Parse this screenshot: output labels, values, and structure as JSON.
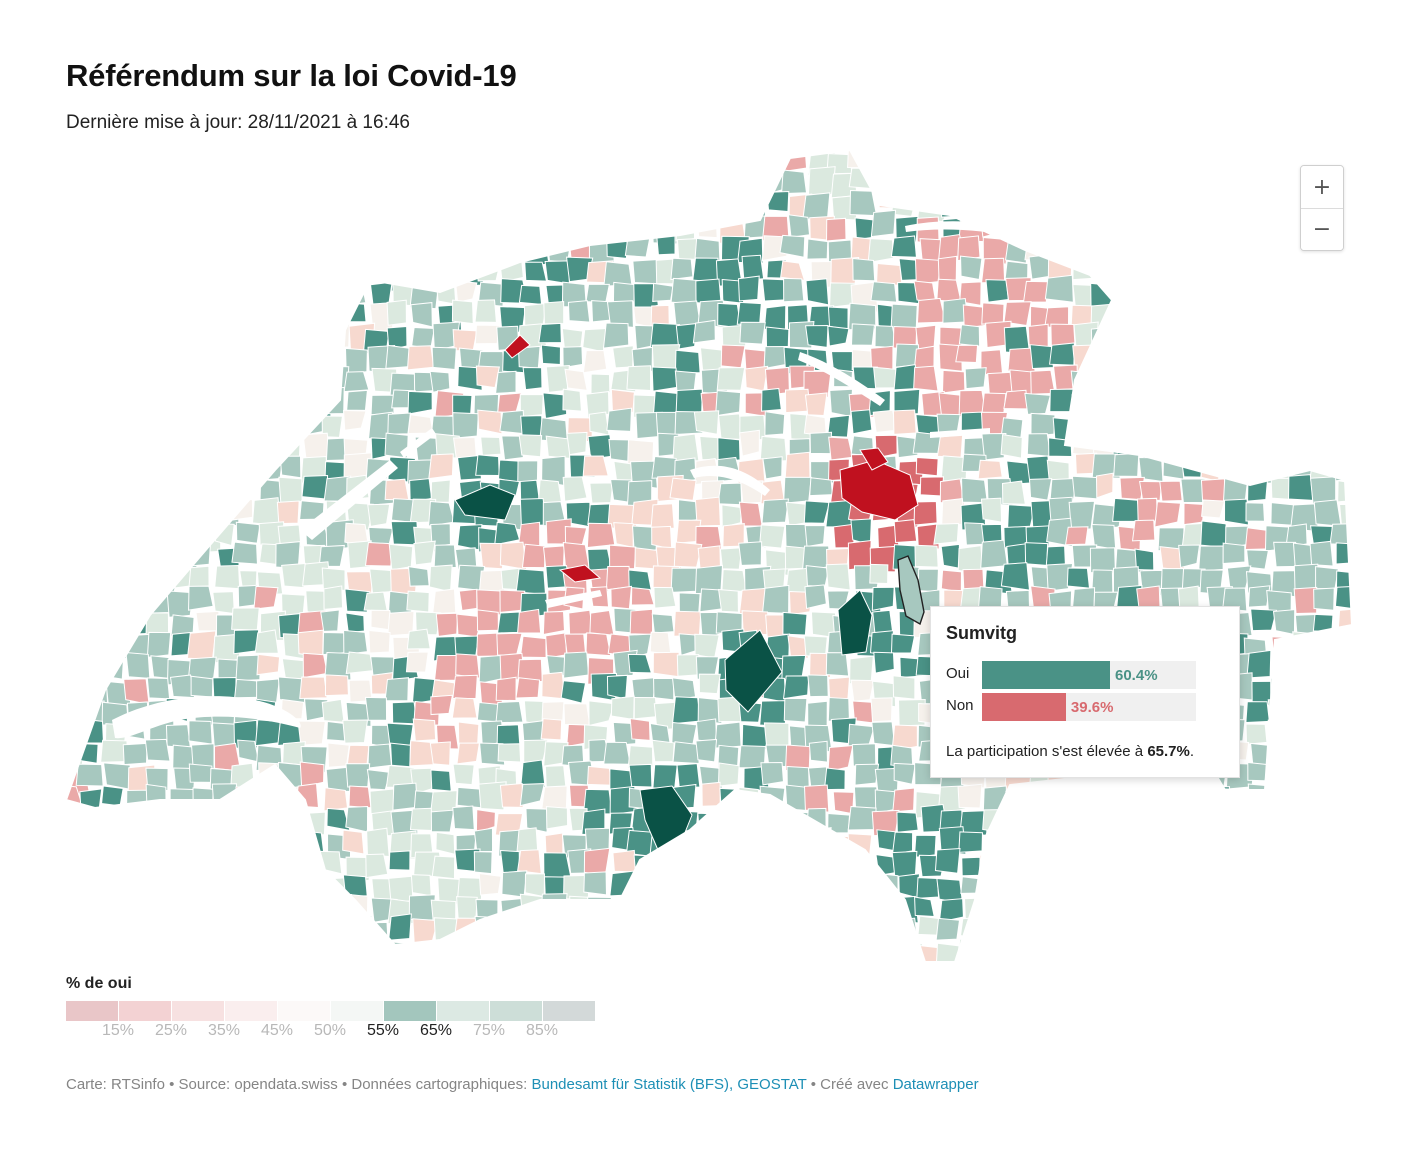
{
  "header": {
    "title": "Référendum sur la loi Covid-19",
    "subtitle": "Dernière mise à jour: 28/11/2021 à 16:46"
  },
  "zoom": {
    "in_label": "+",
    "out_label": "−"
  },
  "tooltip": {
    "title": "Sumvitg",
    "yes_label": "Oui",
    "yes_value": "60.4%",
    "yes_pct": 60.4,
    "no_label": "Non",
    "no_value": "39.6%",
    "no_pct": 39.6,
    "turnout_text": "La participation s'est élevée à ",
    "turnout_value": "65.7%",
    "turnout_suffix": ".",
    "yes_color": "#4a9286",
    "no_color": "#d86a6f"
  },
  "legend": {
    "title": "% de oui",
    "colors": [
      "#e9c6c8",
      "#f3d2d3",
      "#f7e1e1",
      "#faeeee",
      "#fcf9f8",
      "#f4f7f5",
      "#a3c6bd",
      "#dce9e3",
      "#cdded8",
      "#d3d9d9"
    ],
    "ticks": [
      "15%",
      "25%",
      "35%",
      "45%",
      "50%",
      "55%",
      "65%",
      "75%",
      "85%"
    ],
    "highlight_ticks": [
      "55%",
      "65%"
    ]
  },
  "footer": {
    "prefix": "Carte: RTSinfo • Source: opendata.swiss • Données cartographiques: ",
    "source_link": "Bundesamt für Statistik (BFS), GEOSTAT",
    "middle": " • Créé avec ",
    "tool_link": "Datawrapper"
  },
  "map_colors": {
    "dark_red": "#c0111f",
    "red": "#d86a6f",
    "light_red": "#eaa9a8",
    "pale_red": "#f7d9cf",
    "neutral": "#f6f1ec",
    "pale_green": "#dbe9df",
    "light_green": "#a7c8bf",
    "green": "#4a9286",
    "dark_green": "#0a5246"
  }
}
